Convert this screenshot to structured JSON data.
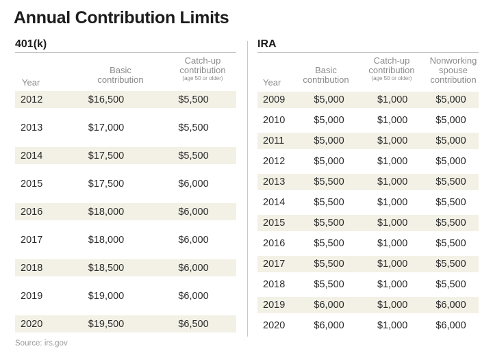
{
  "title": "Annual Contribution Limits",
  "source": "Source: irs.gov",
  "k401": {
    "label": "401(k)",
    "headers": {
      "year": "Year",
      "basic_1": "Basic",
      "basic_2": "contribution",
      "catch_1": "Catch-up",
      "catch_2": "contribution",
      "catch_3": "(age 50 or older)"
    },
    "rows": [
      {
        "year": "2012",
        "basic": "$16,500",
        "catchup": "$5,500"
      },
      {
        "year": "2013",
        "basic": "$17,000",
        "catchup": "$5,500"
      },
      {
        "year": "2014",
        "basic": "$17,500",
        "catchup": "$5,500"
      },
      {
        "year": "2015",
        "basic": "$17,500",
        "catchup": "$6,000"
      },
      {
        "year": "2016",
        "basic": "$18,000",
        "catchup": "$6,000"
      },
      {
        "year": "2017",
        "basic": "$18,000",
        "catchup": "$6,000"
      },
      {
        "year": "2018",
        "basic": "$18,500",
        "catchup": "$6,000"
      },
      {
        "year": "2019",
        "basic": "$19,000",
        "catchup": "$6,000"
      },
      {
        "year": "2020",
        "basic": "$19,500",
        "catchup": "$6,500"
      }
    ]
  },
  "ira": {
    "label": "IRA",
    "headers": {
      "year": "Year",
      "basic_1": "Basic",
      "basic_2": "contribution",
      "catch_1": "Catch-up",
      "catch_2": "contribution",
      "catch_3": "(age 50 or older)",
      "spouse_1": "Nonworking",
      "spouse_2": "spouse",
      "spouse_3": "contribution"
    },
    "rows": [
      {
        "year": "2009",
        "basic": "$5,000",
        "catchup": "$1,000",
        "spouse": "$5,000"
      },
      {
        "year": "2010",
        "basic": "$5,000",
        "catchup": "$1,000",
        "spouse": "$5,000"
      },
      {
        "year": "2011",
        "basic": "$5,000",
        "catchup": "$1,000",
        "spouse": "$5,000"
      },
      {
        "year": "2012",
        "basic": "$5,000",
        "catchup": "$1,000",
        "spouse": "$5,000"
      },
      {
        "year": "2013",
        "basic": "$5,500",
        "catchup": "$1,000",
        "spouse": "$5,500"
      },
      {
        "year": "2014",
        "basic": "$5,500",
        "catchup": "$1,000",
        "spouse": "$5,500"
      },
      {
        "year": "2015",
        "basic": "$5,500",
        "catchup": "$1,000",
        "spouse": "$5,500"
      },
      {
        "year": "2016",
        "basic": "$5,500",
        "catchup": "$1,000",
        "spouse": "$5,500"
      },
      {
        "year": "2017",
        "basic": "$5,500",
        "catchup": "$1,000",
        "spouse": "$5,500"
      },
      {
        "year": "2018",
        "basic": "$5,500",
        "catchup": "$1,000",
        "spouse": "$5,500"
      },
      {
        "year": "2019",
        "basic": "$6,000",
        "catchup": "$1,000",
        "spouse": "$6,000"
      },
      {
        "year": "2020",
        "basic": "$6,000",
        "catchup": "$1,000",
        "spouse": "$6,000"
      }
    ]
  }
}
